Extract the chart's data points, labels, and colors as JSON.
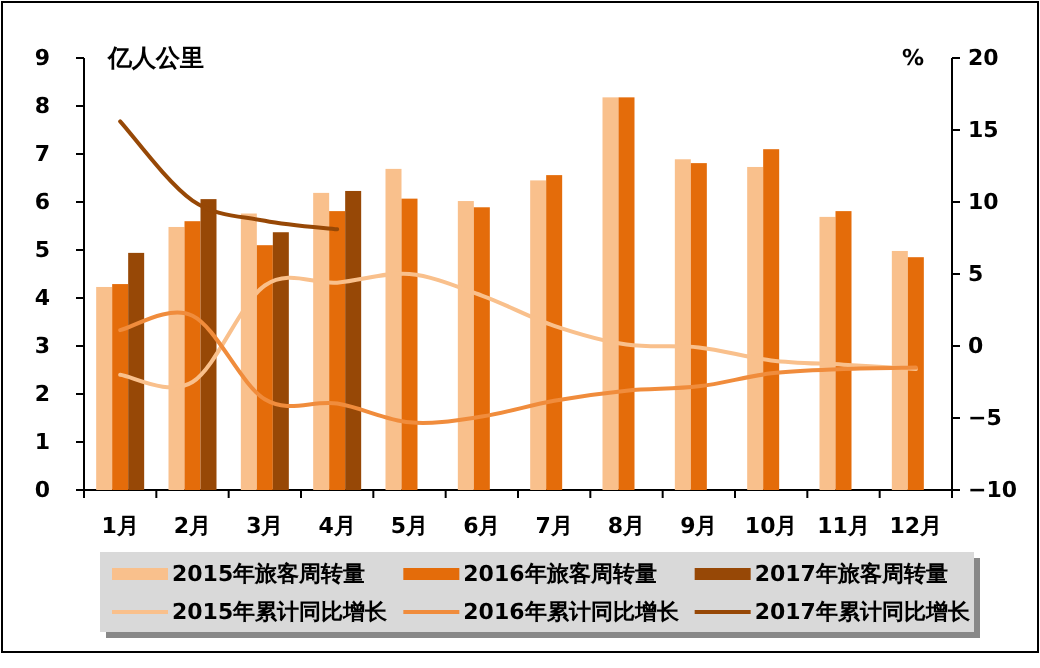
{
  "chart_data": {
    "type": "bar",
    "ylabel": "亿人公里",
    "y2label": "%",
    "categories": [
      "1月",
      "2月",
      "3月",
      "4月",
      "5月",
      "6月",
      "7月",
      "8月",
      "9月",
      "10月",
      "11月",
      "12月"
    ],
    "series": [
      {
        "name": "2015年旅客周转量",
        "color": "#f9c08c",
        "values": [
          4.23,
          5.48,
          5.76,
          6.19,
          6.69,
          6.02,
          6.45,
          8.18,
          6.89,
          6.73,
          5.69,
          4.98
        ]
      },
      {
        "name": "2016年旅客周转量",
        "color": "#e46c0a",
        "values": [
          4.29,
          5.6,
          5.1,
          5.81,
          6.07,
          5.89,
          6.56,
          8.18,
          6.81,
          7.1,
          5.81,
          4.85
        ]
      },
      {
        "name": "2017年旅客周转量",
        "color": "#974806",
        "values": [
          4.94,
          6.06,
          5.37,
          6.23,
          null,
          null,
          null,
          null,
          null,
          null,
          null,
          null
        ]
      },
      {
        "name": "2015年累计同比增长",
        "type": "line",
        "axis": "y2",
        "color": "#f9c08c",
        "values": [
          -2.0,
          -2.5,
          4.2,
          4.4,
          5.0,
          3.5,
          1.4,
          0.1,
          -0.1,
          -1.0,
          -1.3,
          -1.6
        ]
      },
      {
        "name": "2016年累计同比增长",
        "type": "line",
        "axis": "y2",
        "color": "#f08c3c",
        "values": [
          1.1,
          2.1,
          -3.7,
          -4.0,
          -5.3,
          -4.9,
          -3.8,
          -3.1,
          -2.8,
          -1.9,
          -1.6,
          -1.5
        ]
      },
      {
        "name": "2017年累计同比增长",
        "type": "line",
        "axis": "y2",
        "color": "#974806",
        "values": [
          15.6,
          10.1,
          8.7,
          8.1,
          null,
          null,
          null,
          null,
          null,
          null,
          null,
          null
        ]
      }
    ],
    "ylim": [
      0,
      9
    ],
    "yticks": [
      0,
      1,
      2,
      3,
      4,
      5,
      6,
      7,
      8,
      9
    ],
    "y2lim": [
      -10,
      20
    ],
    "y2ticks": [
      -10,
      -5,
      0,
      5,
      10,
      15,
      20
    ],
    "legend": "bottom",
    "grid": false
  }
}
